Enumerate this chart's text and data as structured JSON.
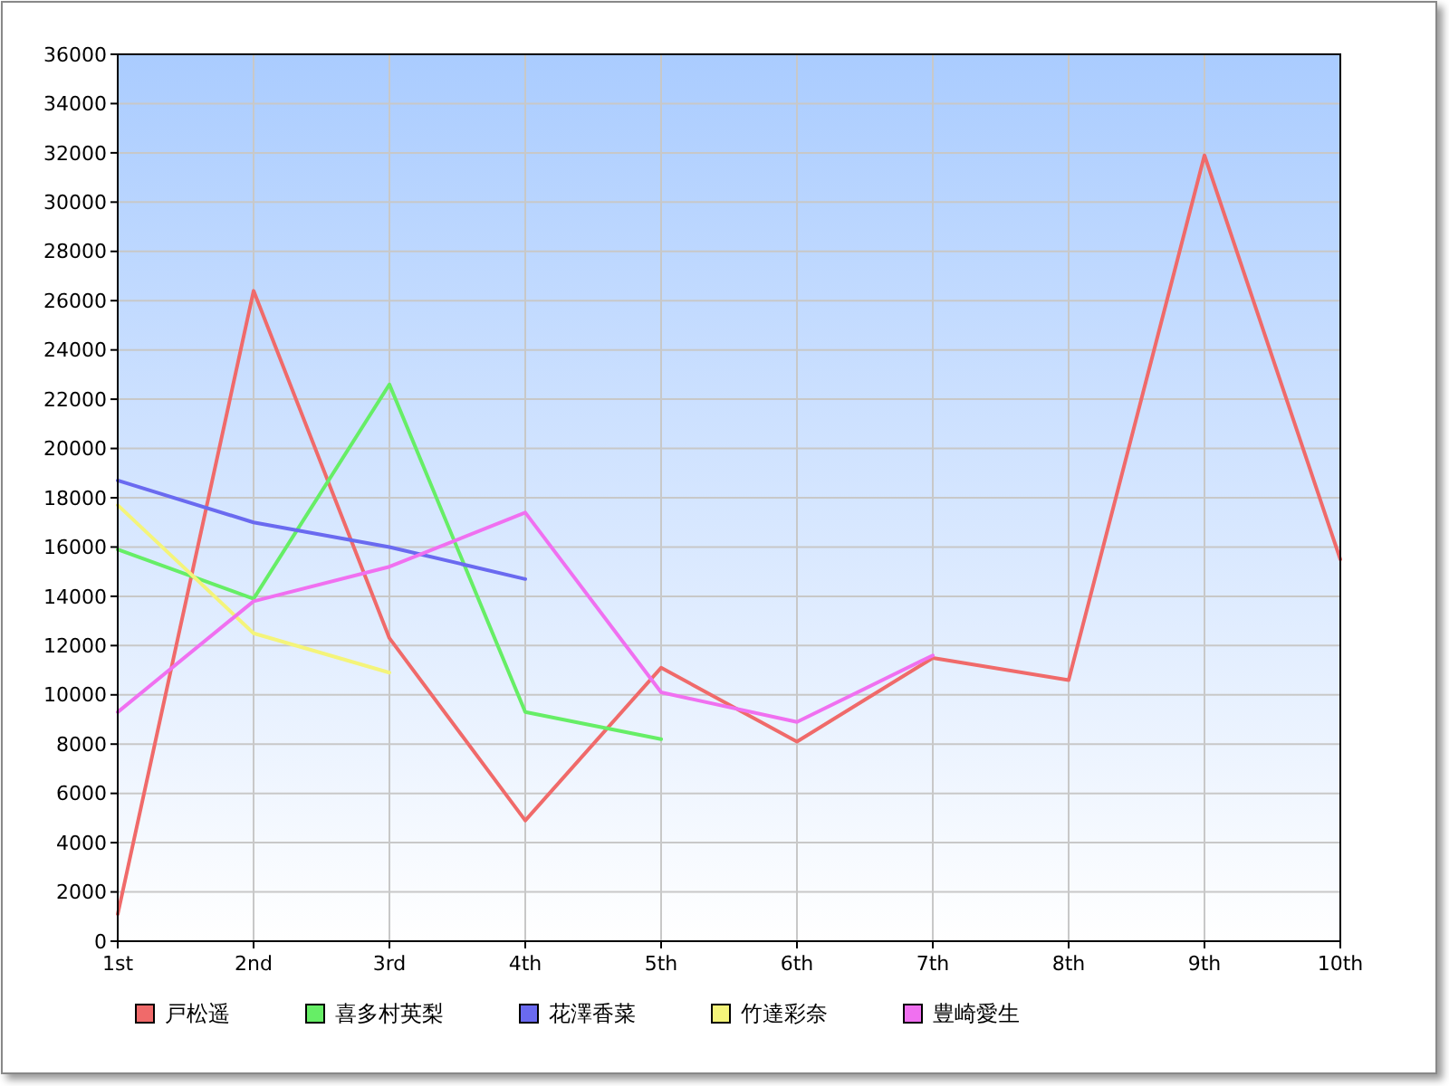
{
  "chart_data": {
    "type": "line",
    "categories": [
      "1st",
      "2nd",
      "3rd",
      "4th",
      "5th",
      "6th",
      "7th",
      "8th",
      "9th",
      "10th"
    ],
    "series": [
      {
        "name": "戸松遥",
        "color": "#f06a6a",
        "values": [
          1100,
          26400,
          12300,
          4900,
          11100,
          8100,
          11500,
          10600,
          31900,
          15500
        ]
      },
      {
        "name": "喜多村英梨",
        "color": "#66ee66",
        "values": [
          15900,
          13900,
          22600,
          9300,
          8200,
          null,
          null,
          null,
          null,
          null
        ]
      },
      {
        "name": "花澤香菜",
        "color": "#6a6af0",
        "values": [
          18700,
          17000,
          16000,
          14700,
          null,
          null,
          null,
          null,
          null,
          null
        ]
      },
      {
        "name": "竹達彩奈",
        "color": "#f4f47a",
        "values": [
          17700,
          12500,
          10900,
          null,
          null,
          null,
          null,
          null,
          null,
          null
        ]
      },
      {
        "name": "豊崎愛生",
        "color": "#f070f0",
        "values": [
          9300,
          13800,
          15200,
          17400,
          10100,
          8900,
          11600,
          null,
          null,
          null
        ]
      }
    ],
    "ylim": [
      0,
      36000
    ],
    "yticks": [
      0,
      2000,
      4000,
      6000,
      8000,
      10000,
      12000,
      14000,
      16000,
      18000,
      20000,
      22000,
      24000,
      26000,
      28000,
      30000,
      32000,
      34000,
      36000
    ],
    "grid": true,
    "legend": "bottom",
    "marker": "none",
    "line_style": "solid"
  }
}
